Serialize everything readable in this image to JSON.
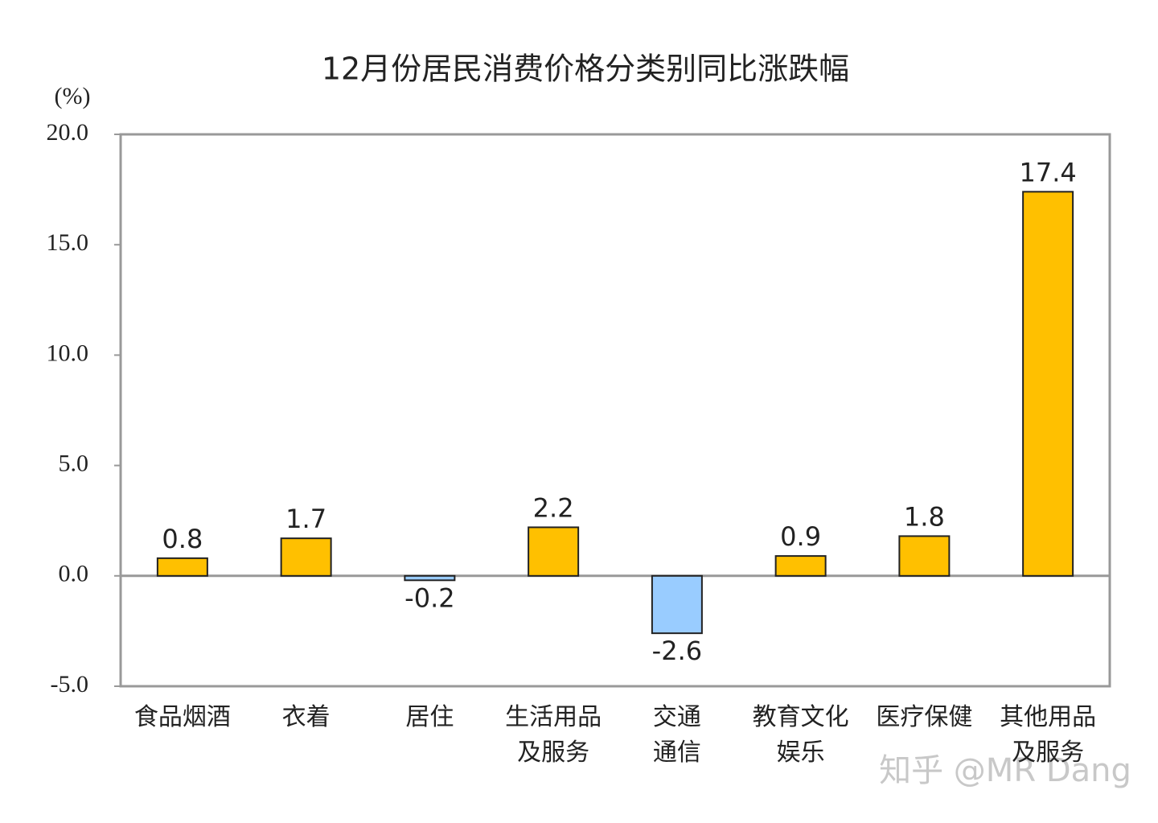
{
  "chart_data": {
    "type": "bar",
    "title": "12月份居民消费价格分类别同比涨跌幅",
    "y_label": "(%)",
    "categories": [
      "食品烟酒",
      "衣着",
      "居住",
      "生活用品\n及服务",
      "交通\n通信",
      "教育文化\n娱乐",
      "医疗保健",
      "其他用品\n及服务"
    ],
    "values": [
      0.8,
      1.7,
      -0.2,
      2.2,
      -2.6,
      0.9,
      1.8,
      17.4
    ],
    "color": "#FFC000",
    "negative_color": "#99CCFF",
    "ylim": [
      -5,
      20
    ],
    "yticks": [
      {
        "value": -5,
        "label": "-5.0"
      },
      {
        "value": 0,
        "label": "0.0"
      },
      {
        "value": 5,
        "label": "5.0"
      },
      {
        "value": 10,
        "label": "10.0"
      },
      {
        "value": 15,
        "label": "15.0"
      },
      {
        "value": 20,
        "label": "20.0"
      }
    ],
    "grid": false,
    "watermark": "知乎 @MR Dang"
  }
}
